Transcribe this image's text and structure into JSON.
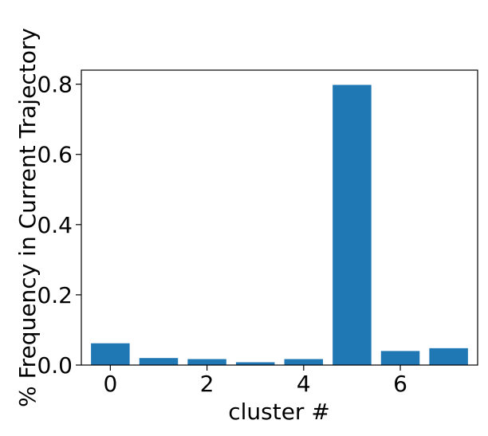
{
  "chart_data": {
    "type": "bar",
    "title": "",
    "xlabel": "cluster #",
    "ylabel": "% Frequency in Current Trajectory",
    "categories": [
      0,
      1,
      2,
      3,
      4,
      5,
      6,
      7
    ],
    "values": [
      0.062,
      0.02,
      0.017,
      0.008,
      0.017,
      0.798,
      0.04,
      0.048
    ],
    "xlim": [
      -0.6,
      7.6
    ],
    "ylim": [
      0.0,
      0.84
    ],
    "xticks": [
      0,
      2,
      4,
      6
    ],
    "xtick_labels": [
      "0",
      "2",
      "4",
      "6"
    ],
    "yticks": [
      0.0,
      0.2,
      0.4,
      0.6,
      0.8
    ],
    "ytick_labels": [
      "0.0",
      "0.2",
      "0.4",
      "0.6",
      "0.8"
    ],
    "bar_color": "#1f77b4",
    "grid": false,
    "legend": "none"
  }
}
